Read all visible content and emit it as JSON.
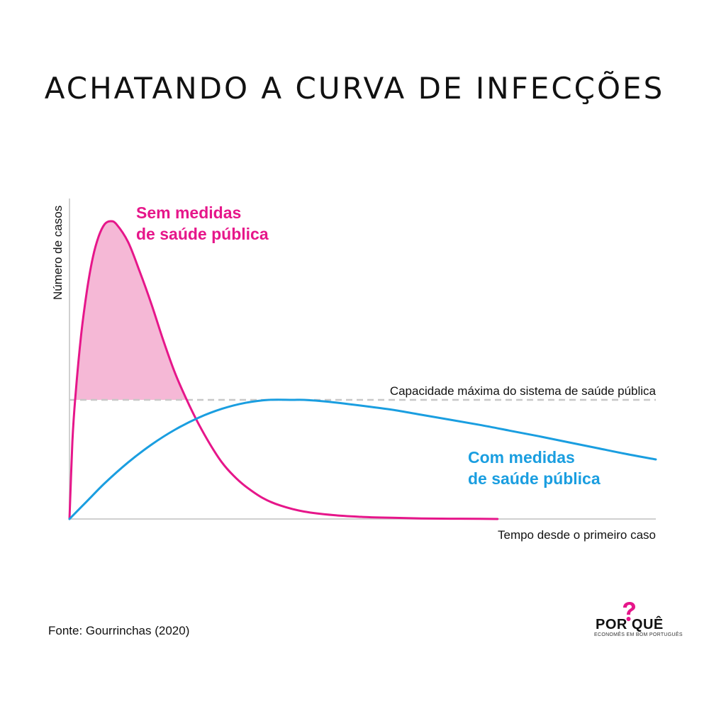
{
  "title": "ACHATANDO A CURVA DE INFECÇÕES",
  "source": "Fonte: Gourrinchas (2020)",
  "logo": {
    "main": "POR QUÊ",
    "tagline": "ECONOMÊS EM BOM PORTUGUÊS"
  },
  "colors": {
    "pink": "#e6168a",
    "pink_fill": "#f5b8d6",
    "blue": "#1a9ee0",
    "capacity_line": "#c8c8c8",
    "axis": "#d0d0d0"
  },
  "chart_data": {
    "type": "line",
    "xlabel": "Tempo desde o primeiro caso",
    "ylabel": "Número de casos",
    "xlim": [
      0,
      100
    ],
    "ylim": [
      0,
      100
    ],
    "grid": false,
    "capacity": {
      "value": 40,
      "label": "Capacidade máxima do sistema de saúde pública"
    },
    "series": [
      {
        "name": "Sem medidas de saúde pública",
        "label_lines": [
          "Sem medidas",
          "de saúde pública"
        ],
        "color": "#e6168a",
        "x": [
          0,
          0.5,
          1,
          2,
          3,
          4,
          5,
          6,
          7,
          8,
          10,
          12,
          14,
          16,
          18,
          20,
          22,
          24,
          26,
          28,
          30,
          33,
          36,
          40,
          45,
          50,
          55,
          60,
          65,
          70,
          73
        ],
        "y": [
          0,
          26,
          41,
          62,
          77,
          88,
          95,
          99,
          100,
          99,
          93,
          83,
          72,
          60,
          49,
          40,
          32,
          25,
          19,
          14.5,
          11,
          7,
          4.5,
          2.5,
          1.3,
          0.7,
          0.4,
          0.2,
          0.1,
          0.05,
          0
        ]
      },
      {
        "name": "Com medidas de saúde pública",
        "label_lines": [
          "Com medidas",
          "de saúde pública"
        ],
        "color": "#1a9ee0",
        "x": [
          0,
          3,
          6,
          10,
          14,
          18,
          22,
          26,
          30,
          34,
          38,
          40,
          44,
          50,
          55,
          60,
          65,
          70,
          75,
          80,
          85,
          90,
          95,
          100
        ],
        "y": [
          0,
          6,
          12,
          19,
          25,
          30,
          34,
          37,
          39,
          40,
          40,
          40,
          39.4,
          38,
          36.7,
          35,
          33.3,
          31.6,
          29.7,
          27.8,
          25.8,
          23.8,
          21.8,
          20
        ]
      }
    ]
  }
}
